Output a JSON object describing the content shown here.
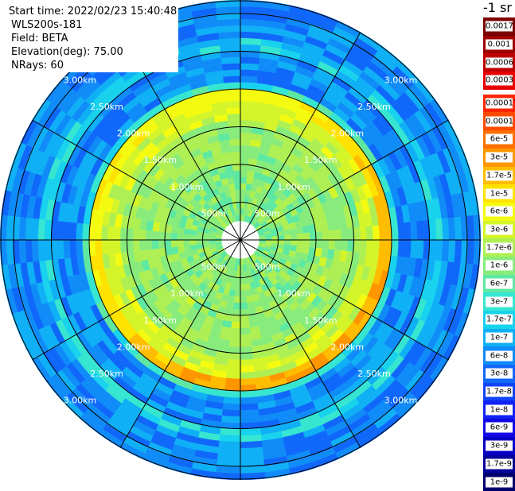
{
  "info": {
    "start_time": "Start time: 2022/02/23 15:40:48",
    "device": "WLS200s-181",
    "field": "Field: BETA",
    "elevation": "Elevation(deg): 75.00",
    "nrays": "NRays: 60"
  },
  "range_labels": [
    "500m",
    "1.00km",
    "1.50km",
    "2.00km",
    "2.50km",
    "3.00km"
  ],
  "colorbar": {
    "title": "-1 sr",
    "upper": [
      {
        "label": "0.0017",
        "color": "#7a0000"
      },
      {
        "label": "0.001",
        "color": "#9c0000"
      },
      {
        "label": "0.0006",
        "color": "#c00000"
      },
      {
        "label": "0.0003",
        "color": "#e80000"
      }
    ],
    "lower": [
      {
        "label": "0.00017",
        "color": "#ff2400"
      },
      {
        "label": "0.0001",
        "color": "#ff4a00"
      },
      {
        "label": "6e-5",
        "color": "#ff7000"
      },
      {
        "label": "3e-5",
        "color": "#ff9600"
      },
      {
        "label": "1.7e-5",
        "color": "#ffbc00"
      },
      {
        "label": "1e-5",
        "color": "#ffe200"
      },
      {
        "label": "6e-6",
        "color": "#f4fb10"
      },
      {
        "label": "3e-6",
        "color": "#d4f52a"
      },
      {
        "label": "1.7e-6",
        "color": "#aef054"
      },
      {
        "label": "1e-6",
        "color": "#88ec7c"
      },
      {
        "label": "6e-7",
        "color": "#5ee8a2"
      },
      {
        "label": "3e-7",
        "color": "#36e6d0"
      },
      {
        "label": "1.7e-7",
        "color": "#18d2ee"
      },
      {
        "label": "1e-7",
        "color": "#10b0f6"
      },
      {
        "label": "6e-8",
        "color": "#108cf8"
      },
      {
        "label": "3e-8",
        "color": "#1068fa"
      },
      {
        "label": "1.7e-8",
        "color": "#1044fa"
      },
      {
        "label": "1e-8",
        "color": "#1022f4"
      },
      {
        "label": "6e-9",
        "color": "#1008e6"
      },
      {
        "label": "3e-9",
        "color": "#0800c4"
      },
      {
        "label": "1.7e-9",
        "color": "#040098"
      },
      {
        "label": "1e-9",
        "color": "#00006c"
      }
    ]
  }
}
